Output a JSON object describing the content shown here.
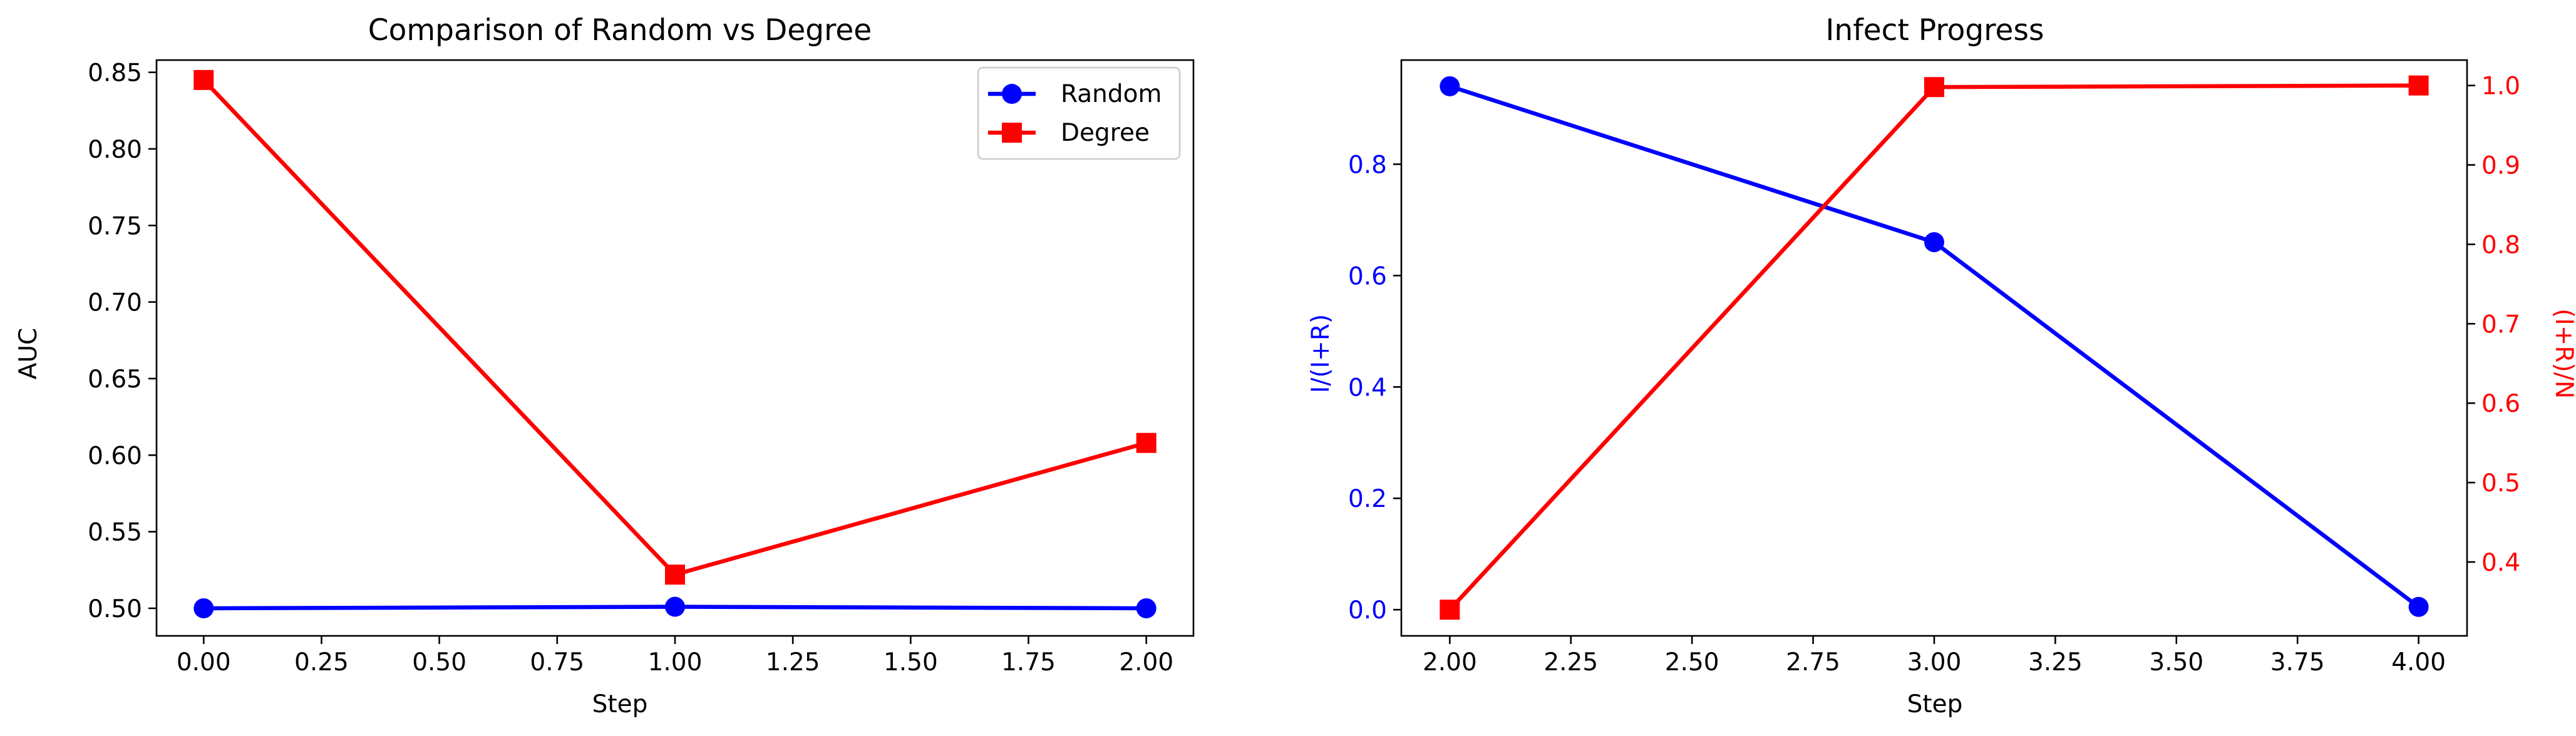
{
  "chart_data": [
    {
      "type": "line",
      "title": "Comparison of Random vs Degree",
      "xlabel": "Step",
      "ylabel": "AUC",
      "xlim": [
        -0.1,
        2.1
      ],
      "ylim": [
        0.482,
        0.858
      ],
      "xticks": [
        0.0,
        0.25,
        0.5,
        0.75,
        1.0,
        1.25,
        1.5,
        1.75,
        2.0
      ],
      "xtick_labels": [
        "0.00",
        "0.25",
        "0.50",
        "0.75",
        "1.00",
        "1.25",
        "1.50",
        "1.75",
        "2.00"
      ],
      "yticks": [
        0.5,
        0.55,
        0.6,
        0.65,
        0.7,
        0.75,
        0.8,
        0.85
      ],
      "ytick_labels": [
        "0.50",
        "0.55",
        "0.60",
        "0.65",
        "0.70",
        "0.75",
        "0.80",
        "0.85"
      ],
      "grid": false,
      "legend": "top-right",
      "series": [
        {
          "name": "Random",
          "color": "#0000ff",
          "marker": "circle",
          "x": [
            0,
            1,
            2
          ],
          "values": [
            0.5,
            0.501,
            0.5
          ]
        },
        {
          "name": "Degree",
          "color": "#ff0000",
          "marker": "square",
          "x": [
            0,
            1,
            2
          ],
          "values": [
            0.845,
            0.522,
            0.608
          ]
        }
      ]
    },
    {
      "type": "line",
      "title": "Infect Progress",
      "xlabel": "Step",
      "ylabel": "I/(I+R)",
      "ylabel_right": "(I+R)/N",
      "xlim": [
        1.9,
        4.1
      ],
      "ylim": [
        -0.047,
        0.987
      ],
      "ylim_right": [
        0.307,
        1.032
      ],
      "xticks": [
        2.0,
        2.25,
        2.5,
        2.75,
        3.0,
        3.25,
        3.5,
        3.75,
        4.0
      ],
      "xtick_labels": [
        "2.00",
        "2.25",
        "2.50",
        "2.75",
        "3.00",
        "3.25",
        "3.50",
        "3.75",
        "4.00"
      ],
      "yticks": [
        0.0,
        0.2,
        0.4,
        0.6,
        0.8
      ],
      "ytick_labels": [
        "0.0",
        "0.2",
        "0.4",
        "0.6",
        "0.8"
      ],
      "yticks_right": [
        0.4,
        0.5,
        0.6,
        0.7,
        0.8,
        0.9,
        1.0
      ],
      "ytick_labels_right": [
        "0.4",
        "0.5",
        "0.6",
        "0.7",
        "0.8",
        "0.9",
        "1.0"
      ],
      "grid": false,
      "series": [
        {
          "axis": "left",
          "color": "#0000ff",
          "marker": "circle",
          "x": [
            2,
            3,
            4
          ],
          "values": [
            0.94,
            0.66,
            0.005
          ]
        },
        {
          "axis": "right",
          "color": "#ff0000",
          "marker": "square",
          "x": [
            2,
            3,
            4
          ],
          "values": [
            0.34,
            0.998,
            1.0
          ]
        }
      ]
    }
  ]
}
